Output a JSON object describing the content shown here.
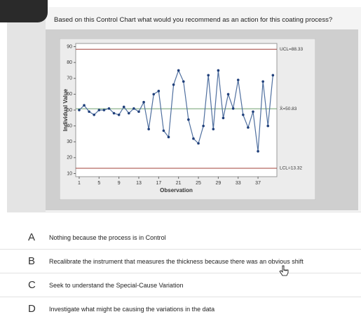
{
  "question": "Based on this Control Chart what would you recommend as an action for this coating process?",
  "chart_data": {
    "type": "line",
    "x_label": "Observation",
    "y_label": "Individual Value",
    "x": [
      1,
      2,
      3,
      4,
      5,
      6,
      7,
      8,
      9,
      10,
      11,
      12,
      13,
      14,
      15,
      16,
      17,
      18,
      19,
      20,
      21,
      22,
      23,
      24,
      25,
      26,
      27,
      28,
      29,
      30,
      31,
      32,
      33,
      34,
      35,
      36,
      37,
      38,
      39,
      40
    ],
    "values": [
      50,
      53,
      49,
      47,
      50,
      50,
      51,
      48,
      47,
      52,
      48,
      51,
      49,
      55,
      38,
      60,
      62,
      37,
      33,
      66,
      75,
      68,
      44,
      32,
      29,
      40,
      72,
      38,
      75,
      45,
      60,
      51,
      69,
      47,
      39,
      49,
      24,
      68,
      40,
      72
    ],
    "color": "#4f6f9f",
    "marker_color": "#1f3f7a",
    "xlim": [
      0.3,
      40.8
    ],
    "xticks": [
      1,
      5,
      9,
      13,
      17,
      21,
      25,
      29,
      33,
      37
    ],
    "ylim": [
      8,
      92
    ],
    "yticks": [
      10,
      20,
      30,
      40,
      50,
      60,
      70,
      80,
      90
    ],
    "limits": [
      {
        "value": 88.33,
        "label": "UCL=88.33",
        "color": "#a0413a"
      },
      {
        "value": 50.83,
        "label": "X̄=50.83",
        "color": "#6f9f6f"
      },
      {
        "value": 13.32,
        "label": "LCL=13.32",
        "color": "#a0413a"
      }
    ]
  },
  "options": [
    {
      "letter": "A",
      "text": "Nothing because the process is in Control"
    },
    {
      "letter": "B",
      "text": "Recalibrate the instrument that measures the thickness because there was an obvious shift"
    },
    {
      "letter": "C",
      "text": "Seek to understand the Special-Cause Variation"
    },
    {
      "letter": "D",
      "text": "Investigate what might be causing the variations in the data"
    }
  ]
}
